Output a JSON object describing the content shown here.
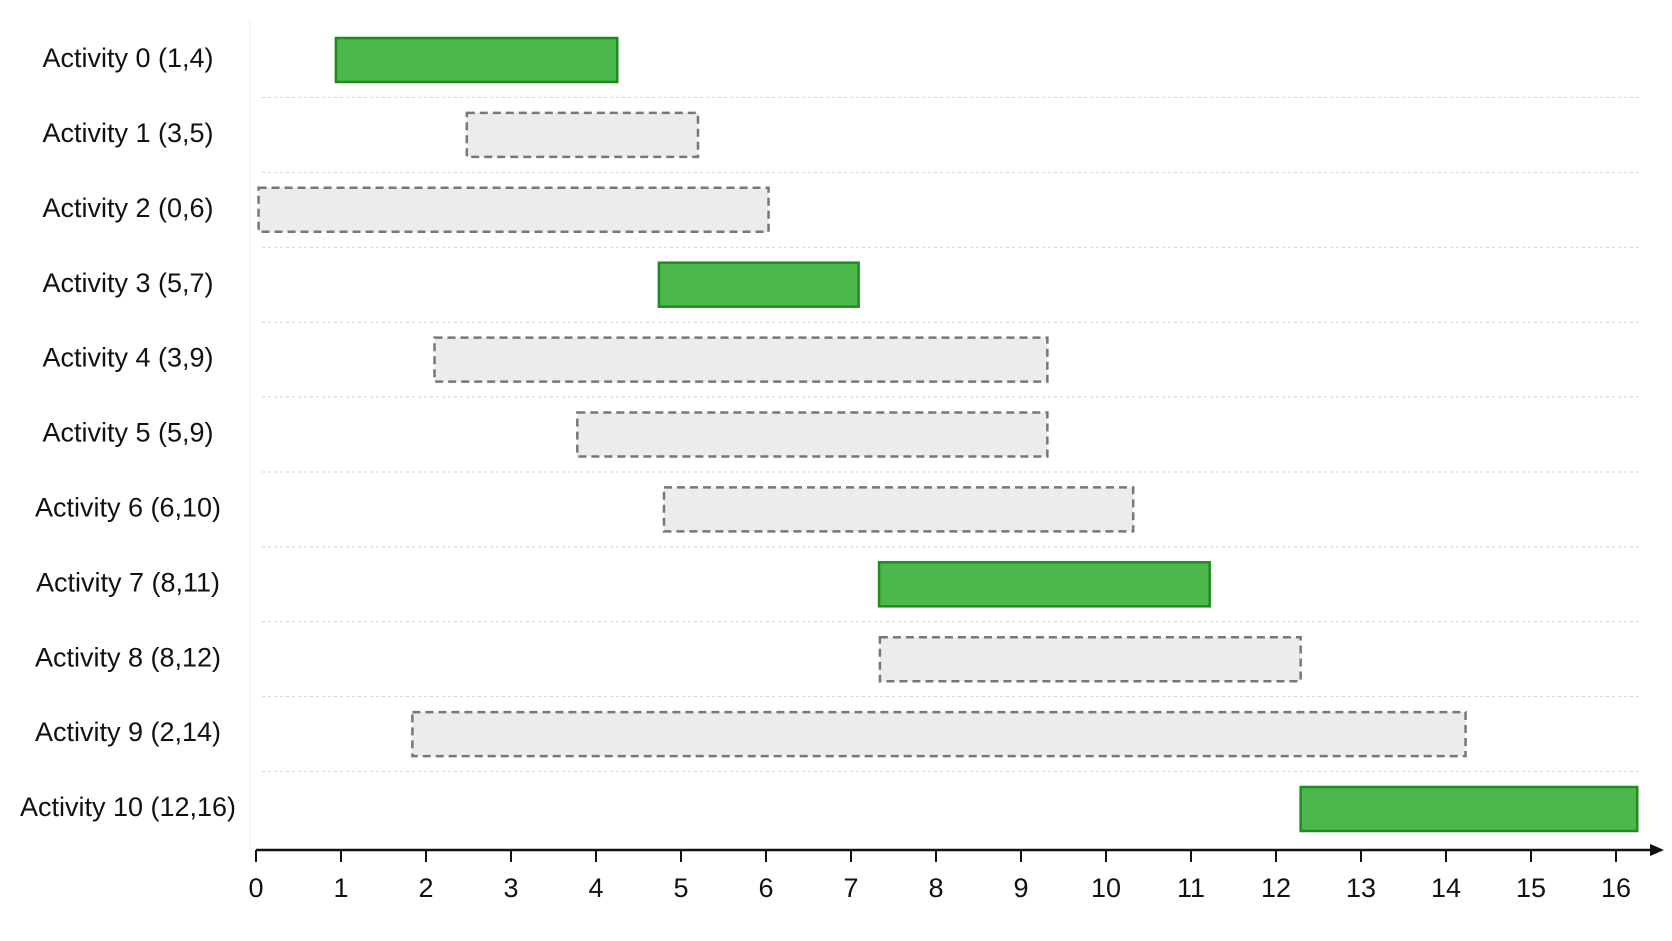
{
  "chart_data": {
    "type": "gantt",
    "categories": [
      "Activity 0 (1,4)",
      "Activity 1 (3,5)",
      "Activity 2 (0,6)",
      "Activity 3 (5,7)",
      "Activity 4 (3,9)",
      "Activity 5 (5,9)",
      "Activity 6 (6,10)",
      "Activity 7 (8,11)",
      "Activity 8 (8,12)",
      "Activity 9 (2,14)",
      "Activity 10 (12,16)"
    ],
    "start": [
      0.94,
      2.48,
      0.03,
      4.74,
      2.1,
      3.78,
      4.8,
      7.33,
      7.34,
      1.84,
      12.29
    ],
    "end": [
      4.25,
      5.2,
      6.03,
      7.09,
      9.31,
      9.31,
      10.32,
      11.22,
      12.29,
      14.23,
      16.25
    ],
    "selected": [
      true,
      false,
      false,
      true,
      false,
      false,
      false,
      true,
      false,
      false,
      true
    ],
    "selected_color": "#4cb84c",
    "selected_stroke": "#1e8c1e",
    "other_color": "#ececec",
    "other_stroke": "#777777",
    "xlim": [
      0,
      16.4
    ],
    "xticks": [
      0,
      1,
      2,
      3,
      4,
      5,
      6,
      7,
      8,
      9,
      10,
      11,
      12,
      13,
      14,
      15,
      16
    ],
    "grid": true
  }
}
